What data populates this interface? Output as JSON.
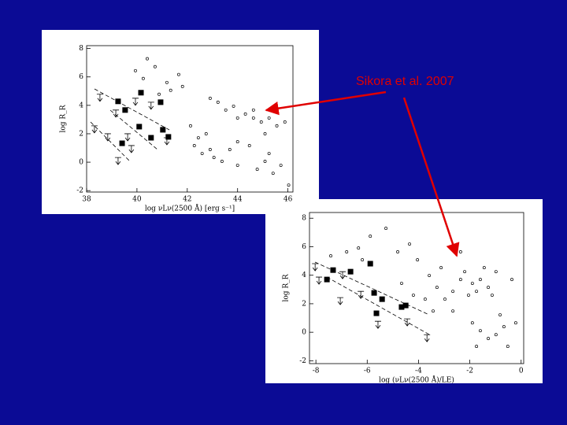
{
  "annotation": "Sikora et al. 2007",
  "chart_data": [
    {
      "type": "scatter",
      "x_label": "log νLν(2500 Å) [erg s⁻¹]",
      "y_label": "log R_R",
      "xlim": [
        38,
        46.2
      ],
      "ylim": [
        -2.1,
        8.2
      ],
      "xticks": [
        38,
        40,
        42,
        44,
        46
      ],
      "yticks": [
        -2,
        0,
        2,
        4,
        6,
        8
      ],
      "series": [
        {
          "marker": "circle",
          "color": "#000000",
          "x": [
            39.94,
            40.25,
            40.72,
            41.19,
            41.34,
            41.66,
            40.41,
            40.88,
            42.13,
            42.44,
            42.28,
            42.75,
            42.91,
            43.06,
            42.59,
            43.38,
            43.69,
            44.0,
            42.91,
            43.22,
            43.53,
            43.84,
            44.0,
            44.31,
            44.63,
            44.94,
            45.25,
            45.56,
            45.88,
            44.63,
            45.09,
            44.78,
            45.09,
            45.41,
            45.72,
            45.25,
            44.0,
            44.47,
            46.03,
            41.81
          ],
          "y": [
            6.44,
            5.89,
            6.72,
            5.61,
            5.06,
            6.17,
            7.28,
            4.78,
            2.56,
            1.72,
            1.17,
            2.0,
            0.89,
            0.33,
            0.61,
            0.06,
            0.89,
            -0.22,
            4.5,
            4.22,
            3.67,
            3.94,
            3.11,
            3.39,
            3.11,
            2.83,
            3.11,
            2.56,
            2.83,
            3.67,
            2.0,
            -0.5,
            0.06,
            -0.78,
            -0.22,
            0.61,
            1.44,
            1.17,
            -1.61,
            5.33
          ]
        },
        {
          "marker": "square",
          "color": "#000000",
          "x": [
            39.25,
            39.53,
            40.16,
            40.94,
            40.09,
            40.56,
            41.03,
            41.25,
            39.41
          ],
          "y": [
            4.28,
            3.67,
            4.89,
            4.22,
            2.5,
            1.72,
            2.28,
            1.78,
            1.33
          ]
        },
        {
          "marker": "arrow",
          "color": "#000000",
          "x": [
            38.53,
            39.16,
            39.94,
            40.56,
            38.31,
            38.84,
            39.63,
            39.78,
            39.25,
            41.19
          ],
          "y": [
            4.78,
            3.67,
            4.5,
            4.22,
            2.56,
            2.0,
            2.0,
            1.17,
            0.33,
            1.72
          ]
        }
      ]
    },
    {
      "type": "scatter",
      "x_label": "log (νLν(2500 Å)/LE)",
      "y_label": "log R_R",
      "xlim": [
        -8.25,
        0.1
      ],
      "ylim": [
        -2.2,
        8.4
      ],
      "xticks": [
        -8,
        -6,
        -4,
        -2,
        0
      ],
      "yticks": [
        -2,
        0,
        2,
        4,
        6,
        8
      ],
      "series": [
        {
          "marker": "circle",
          "color": "#000000",
          "x": [
            -6.34,
            -5.88,
            -5.27,
            -4.81,
            -4.35,
            -4.04,
            -3.58,
            -3.28,
            -2.97,
            -2.66,
            -3.74,
            -3.43,
            -2.36,
            -2.2,
            -1.9,
            -1.74,
            -1.59,
            -1.28,
            -1.13,
            -1.44,
            -0.98,
            -2.05,
            -1.9,
            -1.59,
            -1.28,
            -0.98,
            -0.67,
            -0.52,
            -1.74,
            -0.82,
            -0.21,
            -3.12,
            -2.66,
            -4.66,
            -4.2,
            -6.19,
            -6.8,
            -7.42,
            -0.36,
            -2.36
          ],
          "y": [
            5.91,
            6.74,
            7.29,
            5.64,
            6.19,
            5.08,
            3.98,
            3.15,
            2.32,
            1.49,
            2.32,
            1.49,
            3.7,
            4.25,
            3.43,
            2.87,
            3.7,
            3.15,
            2.6,
            4.53,
            4.25,
            2.6,
            0.66,
            0.11,
            -0.44,
            -0.17,
            0.39,
            -0.99,
            -0.99,
            1.22,
            0.66,
            4.53,
            2.87,
            3.43,
            2.6,
            5.08,
            5.64,
            5.36,
            3.7,
            5.64
          ]
        },
        {
          "marker": "square",
          "color": "#000000",
          "x": [
            -7.33,
            -7.57,
            -6.65,
            -5.88,
            -5.73,
            -5.42,
            -5.64,
            -4.66,
            -4.5
          ],
          "y": [
            4.36,
            3.7,
            4.25,
            4.81,
            2.76,
            2.32,
            1.33,
            1.77,
            1.88
          ]
        },
        {
          "marker": "arrow",
          "color": "#000000",
          "x": [
            -8.03,
            -7.88,
            -6.96,
            -7.05,
            -6.25,
            -5.58,
            -4.44,
            -3.67
          ],
          "y": [
            4.81,
            3.87,
            4.25,
            2.43,
            2.87,
            0.77,
            0.94,
            -0.17
          ]
        }
      ]
    }
  ]
}
